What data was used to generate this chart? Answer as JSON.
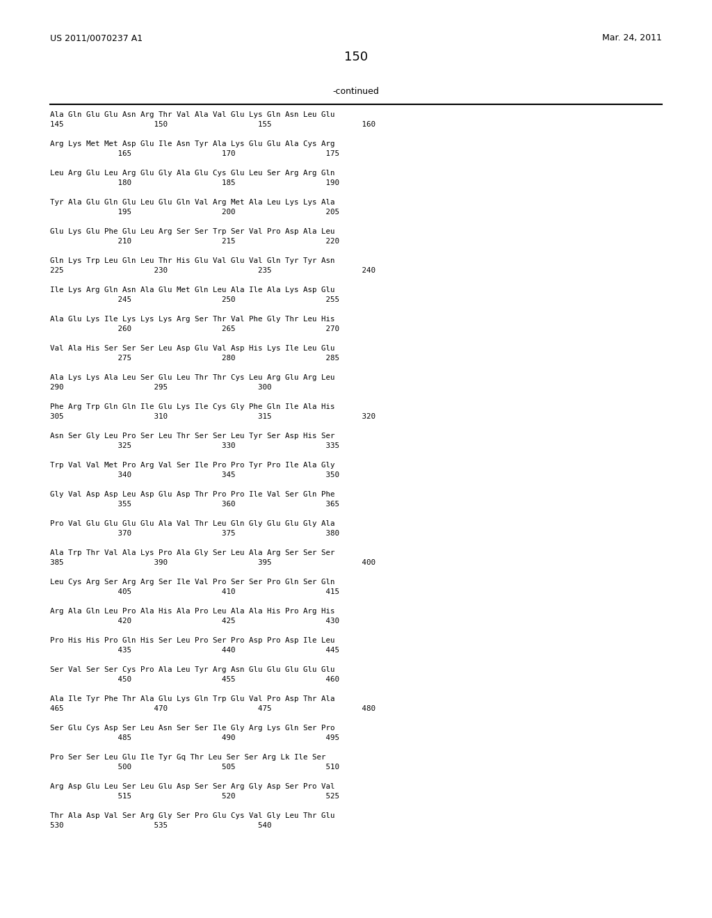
{
  "header_left": "US 2011/0070237 A1",
  "header_right": "Mar. 24, 2011",
  "page_number": "150",
  "continued_label": "-continued",
  "background_color": "#ffffff",
  "text_color": "#000000",
  "sequences": [
    [
      "Ala Gln Glu Glu Asn Arg Thr Val Ala Val Glu Lys Gln Asn Leu Glu",
      "145                    150                    155                    160"
    ],
    [
      "Arg Lys Met Met Asp Glu Ile Asn Tyr Ala Lys Glu Glu Ala Cys Arg",
      "               165                    170                    175"
    ],
    [
      "Leu Arg Glu Leu Arg Glu Gly Ala Glu Cys Glu Leu Ser Arg Arg Gln",
      "               180                    185                    190"
    ],
    [
      "Tyr Ala Glu Gln Glu Leu Glu Gln Val Arg Met Ala Leu Lys Lys Ala",
      "               195                    200                    205"
    ],
    [
      "Glu Lys Glu Phe Glu Leu Arg Ser Ser Trp Ser Val Pro Asp Ala Leu",
      "               210                    215                    220"
    ],
    [
      "Gln Lys Trp Leu Gln Leu Thr His Glu Val Glu Val Gln Tyr Tyr Asn",
      "225                    230                    235                    240"
    ],
    [
      "Ile Lys Arg Gln Asn Ala Glu Met Gln Leu Ala Ile Ala Lys Asp Glu",
      "               245                    250                    255"
    ],
    [
      "Ala Glu Lys Ile Lys Lys Lys Arg Ser Thr Val Phe Gly Thr Leu His",
      "               260                    265                    270"
    ],
    [
      "Val Ala His Ser Ser Ser Leu Asp Glu Val Asp His Lys Ile Leu Glu",
      "               275                    280                    285"
    ],
    [
      "Ala Lys Lys Ala Leu Ser Glu Leu Thr Thr Cys Leu Arg Glu Arg Leu",
      "290                    295                    300"
    ],
    [
      "Phe Arg Trp Gln Gln Ile Glu Lys Ile Cys Gly Phe Gln Ile Ala His",
      "305                    310                    315                    320"
    ],
    [
      "Asn Ser Gly Leu Pro Ser Leu Thr Ser Ser Leu Tyr Ser Asp His Ser",
      "               325                    330                    335"
    ],
    [
      "Trp Val Val Met Pro Arg Val Ser Ile Pro Pro Tyr Pro Ile Ala Gly",
      "               340                    345                    350"
    ],
    [
      "Gly Val Asp Asp Leu Asp Glu Asp Thr Pro Pro Ile Val Ser Gln Phe",
      "               355                    360                    365"
    ],
    [
      "Pro Val Glu Glu Glu Glu Ala Val Thr Leu Gln Gly Glu Glu Gly Ala",
      "               370                    375                    380"
    ],
    [
      "Ala Trp Thr Val Ala Lys Pro Ala Gly Ser Leu Ala Arg Ser Ser Ser",
      "385                    390                    395                    400"
    ],
    [
      "Leu Cys Arg Ser Arg Arg Ser Ile Val Pro Ser Ser Pro Gln Ser Gln",
      "               405                    410                    415"
    ],
    [
      "Arg Ala Gln Leu Pro Ala His Ala Pro Leu Ala Ala His Pro Arg His",
      "               420                    425                    430"
    ],
    [
      "Pro His His Pro Gln His Ser Leu Pro Ser Pro Asp Pro Asp Ile Leu",
      "               435                    440                    445"
    ],
    [
      "Ser Val Ser Ser Cys Pro Ala Leu Tyr Arg Asn Glu Glu Glu Glu Glu",
      "               450                    455                    460"
    ],
    [
      "Ala Ile Tyr Phe Thr Ala Glu Lys Gln Trp Glu Val Pro Asp Thr Ala",
      "465                    470                    475                    480"
    ],
    [
      "Ser Glu Cys Asp Ser Leu Asn Ser Ser Ile Gly Arg Lys Gln Ser Pro",
      "               485                    490                    495"
    ],
    [
      "Pro Ser Ser Leu Glu Ile Tyr Gq Thr Leu Ser Ser Arg Lk Ile Ser",
      "               500                    505                    510"
    ],
    [
      "Arg Asp Glu Leu Ser Leu Glu Asp Ser Ser Arg Gly Asp Ser Pro Val",
      "               515                    520                    525"
    ],
    [
      "Thr Ala Asp Val Ser Arg Gly Ser Pro Glu Cys Val Gly Leu Thr Glu",
      "530                    535                    540"
    ]
  ]
}
